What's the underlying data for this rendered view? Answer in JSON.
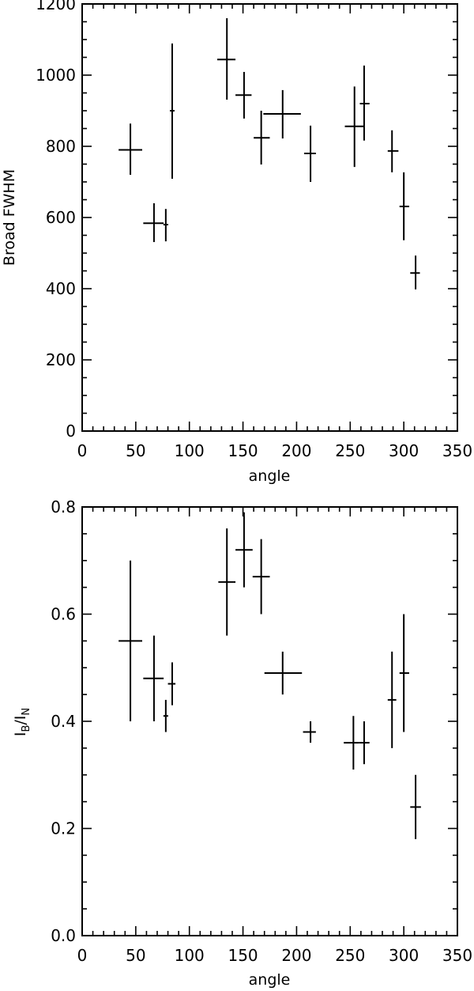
{
  "chart_data": [
    {
      "type": "scatter",
      "title": "",
      "xlabel": "angle",
      "ylabel": "Broad FWHM",
      "xlim": [
        0,
        350
      ],
      "ylim": [
        0,
        1200
      ],
      "x_ticks": [
        0,
        50,
        100,
        150,
        200,
        250,
        300,
        350
      ],
      "y_ticks": [
        0,
        200,
        400,
        600,
        800,
        1000,
        1200
      ],
      "x_minor_step": 10,
      "y_minor_step": 50,
      "grid": false,
      "legend": null,
      "marker": "error-bar cross",
      "points": [
        {
          "x": 45,
          "y": 790,
          "xerr": [
            34,
            56
          ],
          "yerr": [
            720,
            864
          ]
        },
        {
          "x": 67,
          "y": 584,
          "xerr": [
            57,
            76
          ],
          "yerr": [
            531,
            640
          ]
        },
        {
          "x": 78,
          "y": 580,
          "xerr": [
            77,
            79
          ],
          "yerr": [
            533,
            624
          ]
        },
        {
          "x": 84,
          "y": 900,
          "xerr": [
            83,
            86
          ],
          "yerr": [
            709,
            1089
          ]
        },
        {
          "x": 135,
          "y": 1044,
          "xerr": [
            126,
            143
          ],
          "yerr": [
            931,
            1160
          ]
        },
        {
          "x": 151,
          "y": 944,
          "xerr": [
            143,
            158
          ],
          "yerr": [
            878,
            1009
          ]
        },
        {
          "x": 167,
          "y": 824,
          "xerr": [
            160,
            175
          ],
          "yerr": [
            749,
            900
          ]
        },
        {
          "x": 187,
          "y": 891,
          "xerr": [
            169,
            204
          ],
          "yerr": [
            822,
            958
          ]
        },
        {
          "x": 213,
          "y": 780,
          "xerr": [
            207,
            218
          ],
          "yerr": [
            700,
            858
          ]
        },
        {
          "x": 254,
          "y": 856,
          "xerr": [
            245,
            263
          ],
          "yerr": [
            742,
            968
          ]
        },
        {
          "x": 263,
          "y": 920,
          "xerr": [
            259,
            268
          ],
          "yerr": [
            816,
            1027
          ]
        },
        {
          "x": 289,
          "y": 787,
          "xerr": [
            285,
            295
          ],
          "yerr": [
            727,
            845
          ]
        },
        {
          "x": 300,
          "y": 631,
          "xerr": [
            296,
            305
          ],
          "yerr": [
            536,
            727
          ]
        },
        {
          "x": 311,
          "y": 444,
          "xerr": [
            306,
            315
          ],
          "yerr": [
            398,
            493
          ]
        }
      ]
    },
    {
      "type": "scatter",
      "title": "",
      "xlabel": "angle",
      "ylabel": "I_B/I_N",
      "ylabel_main": "I",
      "ylabel_sub1": "B",
      "ylabel_slash": "/",
      "ylabel_sub2": "N",
      "xlim": [
        0,
        350
      ],
      "ylim": [
        0.0,
        0.8
      ],
      "x_ticks": [
        0,
        50,
        100,
        150,
        200,
        250,
        300,
        350
      ],
      "y_ticks": [
        "0.0",
        "0.2",
        "0.4",
        "0.6",
        "0.8"
      ],
      "x_minor_step": 10,
      "y_minor_step": 0.05,
      "grid": false,
      "legend": null,
      "marker": "error-bar cross",
      "points": [
        {
          "x": 45,
          "y": 0.55,
          "xerr": [
            34,
            56
          ],
          "yerr": [
            0.4,
            0.7
          ]
        },
        {
          "x": 67,
          "y": 0.48,
          "xerr": [
            57,
            76
          ],
          "yerr": [
            0.4,
            0.56
          ]
        },
        {
          "x": 78,
          "y": 0.41,
          "xerr": [
            77,
            79
          ],
          "yerr": [
            0.38,
            0.44
          ]
        },
        {
          "x": 84,
          "y": 0.47,
          "xerr": [
            80,
            87
          ],
          "yerr": [
            0.43,
            0.51
          ]
        },
        {
          "x": 135,
          "y": 0.66,
          "xerr": [
            127,
            143
          ],
          "yerr": [
            0.56,
            0.76
          ]
        },
        {
          "x": 151,
          "y": 0.72,
          "xerr": [
            143,
            159
          ],
          "yerr": [
            0.65,
            0.79
          ]
        },
        {
          "x": 167,
          "y": 0.67,
          "xerr": [
            159,
            175
          ],
          "yerr": [
            0.6,
            0.74
          ]
        },
        {
          "x": 187,
          "y": 0.49,
          "xerr": [
            170,
            205
          ],
          "yerr": [
            0.45,
            0.53
          ]
        },
        {
          "x": 213,
          "y": 0.38,
          "xerr": [
            206,
            218
          ],
          "yerr": [
            0.36,
            0.4
          ]
        },
        {
          "x": 253,
          "y": 0.36,
          "xerr": [
            244,
            258
          ],
          "yerr": [
            0.31,
            0.41
          ]
        },
        {
          "x": 263,
          "y": 0.36,
          "xerr": [
            258,
            268
          ],
          "yerr": [
            0.32,
            0.4
          ]
        },
        {
          "x": 289,
          "y": 0.44,
          "xerr": [
            285,
            293
          ],
          "yerr": [
            0.35,
            0.53
          ]
        },
        {
          "x": 300,
          "y": 0.49,
          "xerr": [
            296,
            305
          ],
          "yerr": [
            0.38,
            0.6
          ]
        },
        {
          "x": 311,
          "y": 0.24,
          "xerr": [
            306,
            316
          ],
          "yerr": [
            0.18,
            0.3
          ]
        }
      ]
    }
  ],
  "colors": {
    "axis": "#000000",
    "marker": "#000000",
    "background": "#ffffff"
  }
}
